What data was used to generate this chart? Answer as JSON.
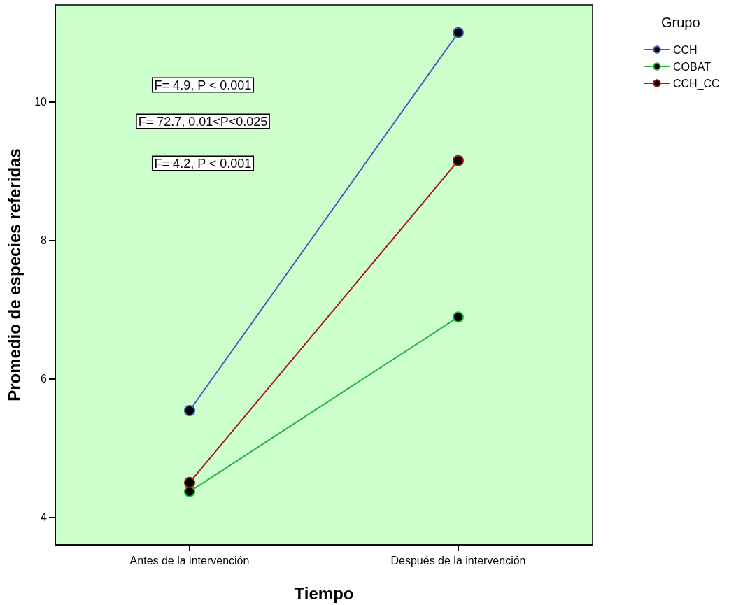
{
  "chart_data": {
    "type": "line",
    "xlabel": "Tiempo",
    "ylabel": "Promedio de especies referidas",
    "legend_title": "Grupo",
    "categories": [
      "Antes de la intervención",
      "Después de la intervención"
    ],
    "series": [
      {
        "name": "CCH",
        "color": "#4263b5",
        "values": [
          5.54,
          11.0
        ]
      },
      {
        "name": "COBAT",
        "color": "#2bb540",
        "values": [
          4.37,
          6.89
        ]
      },
      {
        "name": "CCH_CC",
        "color": "#a8191c",
        "values": [
          4.5,
          9.15
        ]
      }
    ],
    "ylim": [
      3.6,
      11.4
    ],
    "yticks": [
      4,
      6,
      8,
      10
    ],
    "annotations": [
      "F= 4.9, P < 0.001",
      "F= 72.7, 0.01<P<0.025",
      "F= 4.2, P < 0.001"
    ],
    "grid": false,
    "legend": "top right",
    "marker": "circle",
    "line_style": "solid"
  }
}
